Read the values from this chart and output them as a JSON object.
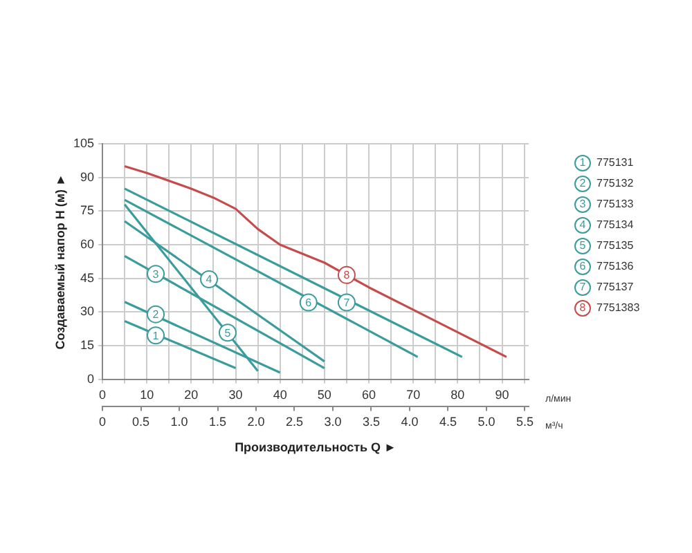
{
  "chart_data": {
    "type": "line",
    "xlabel": "л/мин",
    "x2label": "м³/ч",
    "ylabel": "Создаваемый напор H (м) ►",
    "annotations": [
      "Производительность Q ►",
      {
        "text": "1",
        "x": 12,
        "y": 19.6
      },
      {
        "text": "2",
        "x": 12,
        "y": 29
      },
      {
        "text": "3",
        "x": 12,
        "y": 47
      },
      {
        "text": "4",
        "x": 24,
        "y": 44.6
      },
      {
        "text": "5",
        "x": 28.2,
        "y": 20.8
      },
      {
        "text": "6",
        "x": 46.4,
        "y": 34.3
      },
      {
        "text": "7",
        "x": 55,
        "y": 34.3
      },
      {
        "text": "8",
        "x": 55,
        "y": 46.5
      }
    ],
    "xlim": [
      0,
      96
    ],
    "xticks": [
      0,
      {
        "value": 5,
        "label": null
      },
      10,
      {
        "value": 15,
        "label": null
      },
      20,
      {
        "value": 25,
        "label": null
      },
      30,
      {
        "value": 35,
        "label": null
      },
      40,
      {
        "value": 45,
        "label": null
      },
      50,
      {
        "value": 55,
        "label": null
      },
      60,
      {
        "value": 65,
        "label": null
      },
      70,
      {
        "value": 75,
        "label": null
      },
      80,
      {
        "value": 85,
        "label": null
      },
      90,
      {
        "value": 95,
        "label": null
      }
    ],
    "x2lim": [
      0,
      5.55
    ],
    "x2ticks": [
      {
        "value": 0,
        "label": "0"
      },
      {
        "value": 0.5,
        "label": "0.5"
      },
      {
        "value": 1,
        "label": "1.0"
      },
      {
        "value": 1.5,
        "label": "1.5"
      },
      {
        "value": 2,
        "label": "2.0"
      },
      {
        "value": 2.5,
        "label": "2.5"
      },
      {
        "value": 3,
        "label": "3.0"
      },
      {
        "value": 3.5,
        "label": "3.5"
      },
      {
        "value": 4,
        "label": "4.0"
      },
      {
        "value": 4.5,
        "label": "4.5"
      },
      {
        "value": 5,
        "label": "5.0"
      },
      {
        "value": 5.5,
        "label": "5.5"
      }
    ],
    "ylim": [
      0,
      105
    ],
    "yticks": [
      0,
      15,
      30,
      45,
      60,
      75,
      90,
      105
    ],
    "grid": true,
    "legend": "right",
    "marker": "none",
    "series": [
      {
        "name": "775131",
        "color": "#3a9c9c",
        "x": [
          5,
          30
        ],
        "values": [
          26,
          5
        ]
      },
      {
        "name": "775132",
        "color": "#3a9c9c",
        "x": [
          5,
          40
        ],
        "values": [
          34.5,
          3
        ]
      },
      {
        "name": "775133",
        "color": "#3a9c9c",
        "x": [
          5,
          50
        ],
        "values": [
          55,
          5
        ]
      },
      {
        "name": "775134",
        "color": "#3a9c9c",
        "x": [
          5,
          50
        ],
        "values": [
          70.5,
          8
        ]
      },
      {
        "name": "775135",
        "color": "#3a9c9c",
        "x": [
          5,
          35
        ],
        "values": [
          78,
          3.7
        ]
      },
      {
        "name": "775136",
        "color": "#3a9c9c",
        "x": [
          5,
          71
        ],
        "values": [
          80,
          10
        ]
      },
      {
        "name": "775137",
        "color": "#3a9c9c",
        "x": [
          5,
          81
        ],
        "values": [
          85,
          10
        ]
      },
      {
        "name": "7751383",
        "color": "#c64b4b",
        "x": [
          5,
          10,
          20,
          25,
          30,
          35,
          40,
          45,
          50,
          55,
          60,
          70,
          80,
          91
        ],
        "values": [
          95,
          92,
          85,
          81,
          76,
          67,
          60,
          56,
          52,
          46.5,
          41,
          31,
          21,
          10
        ]
      }
    ]
  }
}
